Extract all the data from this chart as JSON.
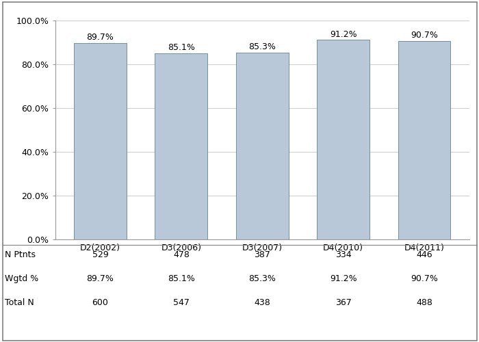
{
  "categories": [
    "D2(2002)",
    "D3(2006)",
    "D3(2007)",
    "D4(2010)",
    "D4(2011)"
  ],
  "values": [
    89.7,
    85.1,
    85.3,
    91.2,
    90.7
  ],
  "bar_color_face": "#b8c8d8",
  "bar_color_edge": "#7090a0",
  "bar_labels": [
    "89.7%",
    "85.1%",
    "85.3%",
    "91.2%",
    "90.7%"
  ],
  "n_ptnts": [
    "529",
    "478",
    "387",
    "334",
    "446"
  ],
  "wgtd_pct": [
    "89.7%",
    "85.1%",
    "85.3%",
    "91.2%",
    "90.7%"
  ],
  "total_n": [
    "600",
    "547",
    "438",
    "367",
    "488"
  ],
  "ylim": [
    0,
    100
  ],
  "yticks": [
    0,
    20,
    40,
    60,
    80,
    100
  ],
  "ytick_labels": [
    "0.0%",
    "20.0%",
    "40.0%",
    "60.0%",
    "80.0%",
    "100.0%"
  ],
  "background_color": "#ffffff",
  "grid_color": "#d0d0d0",
  "label_fontsize": 9,
  "tick_fontsize": 9,
  "table_fontsize": 9,
  "bar_width": 0.65,
  "row_labels": [
    "N Ptnts",
    "Wgtd %",
    "Total N"
  ]
}
